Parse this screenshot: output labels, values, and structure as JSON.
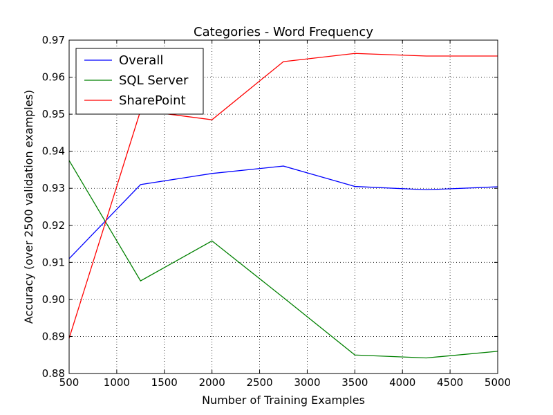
{
  "chart_data": {
    "type": "line",
    "title": "Categories - Word Frequency",
    "xlabel": "Number of Training Examples",
    "ylabel": "Accuracy (over 2500 validation examples)",
    "xlim": [
      500,
      5000
    ],
    "ylim": [
      0.88,
      0.97
    ],
    "xticks": [
      "500",
      "1000",
      "1500",
      "2000",
      "2500",
      "3000",
      "3500",
      "4000",
      "4500",
      "5000"
    ],
    "yticks": [
      "0.88",
      "0.89",
      "0.90",
      "0.91",
      "0.92",
      "0.93",
      "0.94",
      "0.95",
      "0.96",
      "0.97"
    ],
    "grid": true,
    "legend_position": "top-left",
    "x": [
      500,
      1250,
      2000,
      2750,
      3500,
      4250,
      5000
    ],
    "series": [
      {
        "name": "Overall",
        "color": "#0000ff",
        "values": [
          0.911,
          0.931,
          0.934,
          0.936,
          0.9305,
          0.9296,
          0.9304
        ]
      },
      {
        "name": "SQL Server",
        "color": "#008000",
        "values": [
          0.9375,
          0.905,
          0.9158,
          0.9005,
          0.885,
          0.8842,
          0.886
        ]
      },
      {
        "name": "SharePoint",
        "color": "#ff0000",
        "values": [
          0.8895,
          0.951,
          0.9485,
          0.9642,
          0.9664,
          0.9657,
          0.9657
        ]
      }
    ]
  }
}
